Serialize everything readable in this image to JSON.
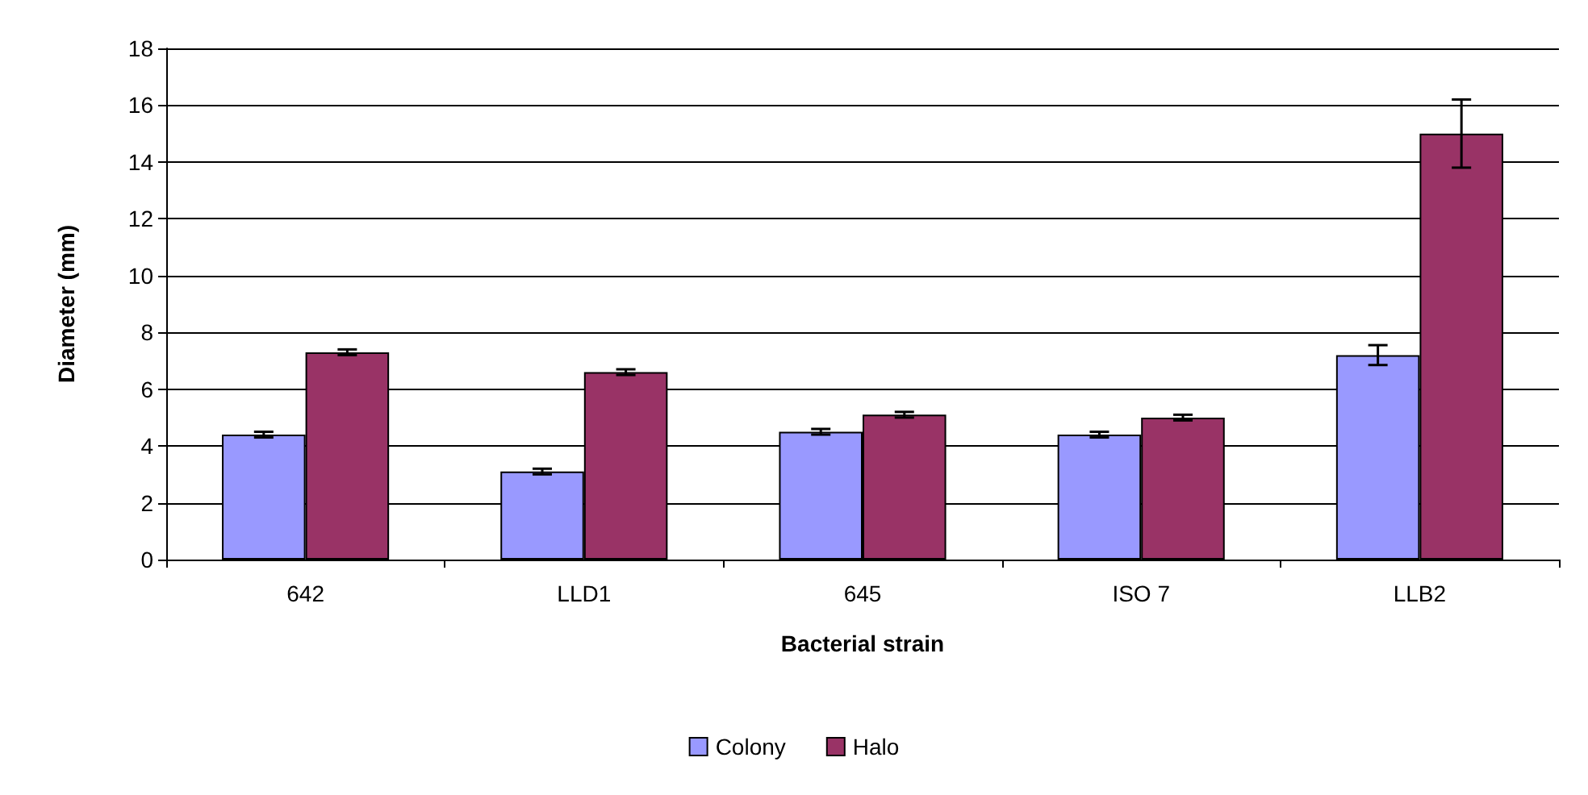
{
  "chart_data": {
    "type": "bar",
    "xlabel": "Bacterial strain",
    "ylabel": "Diameter (mm)",
    "categories": [
      "642",
      "LLD1",
      "645",
      "ISO 7",
      "LLB2"
    ],
    "series": [
      {
        "name": "Colony",
        "color": "#9999ff",
        "values": [
          4.4,
          3.1,
          4.5,
          4.4,
          7.2
        ],
        "errors": [
          0.1,
          0.1,
          0.1,
          0.1,
          0.35
        ]
      },
      {
        "name": "Halo",
        "color": "#993366",
        "values": [
          7.3,
          6.6,
          5.1,
          5.0,
          15.0
        ],
        "errors": [
          0.1,
          0.1,
          0.1,
          0.1,
          1.2
        ]
      }
    ],
    "ylim": [
      0,
      18
    ],
    "yticks": [
      0,
      2,
      4,
      6,
      8,
      10,
      12,
      14,
      16,
      18
    ],
    "grid": "y",
    "legend": "bottom"
  }
}
